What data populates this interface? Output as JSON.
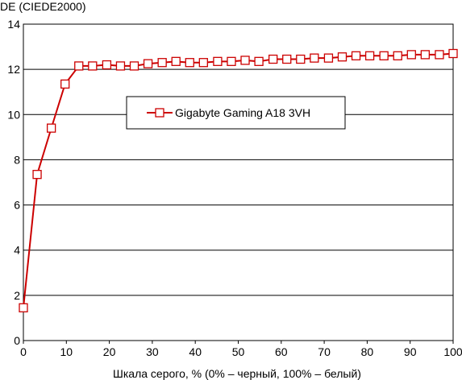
{
  "chart_data": {
    "type": "line",
    "title": "",
    "ylabel": "DE (CIEDE2000)",
    "xlabel": "Шкала серого, % (0% – черный, 100% – белый)",
    "xlim": [
      0,
      100
    ],
    "ylim": [
      0,
      14
    ],
    "x_ticks": [
      "0",
      "10",
      "20",
      "30",
      "40",
      "50",
      "60",
      "70",
      "80",
      "90",
      "100"
    ],
    "y_ticks": [
      "0",
      "2",
      "4",
      "6",
      "8",
      "10",
      "12",
      "14"
    ],
    "grid": "horizontal",
    "legend_position": "inside, upper middle",
    "series": [
      {
        "name": "Gigabyte Gaming A18 3VH",
        "color": "#cc0000",
        "marker": "open-square",
        "x": [
          0,
          3.2,
          6.5,
          9.7,
          12.9,
          16.1,
          19.4,
          22.6,
          25.8,
          29.0,
          32.3,
          35.5,
          38.7,
          41.9,
          45.2,
          48.4,
          51.6,
          54.8,
          58.1,
          61.3,
          64.5,
          67.7,
          71.0,
          74.2,
          77.4,
          80.6,
          83.9,
          87.1,
          90.3,
          93.5,
          96.8,
          100
        ],
        "y": [
          1.45,
          7.35,
          9.4,
          11.35,
          12.15,
          12.15,
          12.2,
          12.15,
          12.15,
          12.25,
          12.3,
          12.35,
          12.3,
          12.3,
          12.35,
          12.35,
          12.4,
          12.35,
          12.45,
          12.45,
          12.45,
          12.5,
          12.5,
          12.55,
          12.6,
          12.6,
          12.6,
          12.6,
          12.65,
          12.65,
          12.65,
          12.7
        ]
      }
    ]
  }
}
